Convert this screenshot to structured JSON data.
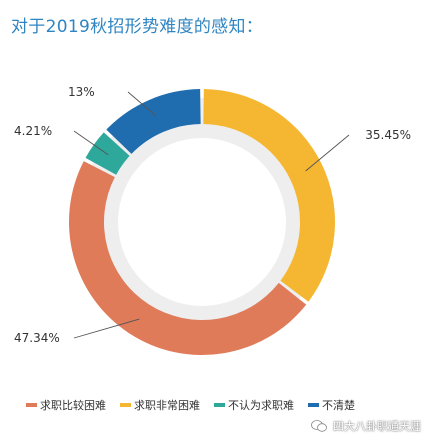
{
  "title": "对于2019秋招形势难度的感知：",
  "watermark": "四大八卦职通天涯",
  "chart_data": {
    "type": "pie",
    "style": "donut",
    "categories": [
      "求职比较困难",
      "求职非常困难",
      "不认为求职难",
      "不清楚"
    ],
    "values": [
      47.34,
      35.45,
      4.21,
      13
    ],
    "labels": [
      "47.34%",
      "35.45%",
      "4.21%",
      "13%"
    ],
    "colors": [
      "#e07b5a",
      "#f5b731",
      "#2ea89a",
      "#1f6cae"
    ],
    "track_color": "#eeeeee",
    "legend_position": "bottom"
  }
}
